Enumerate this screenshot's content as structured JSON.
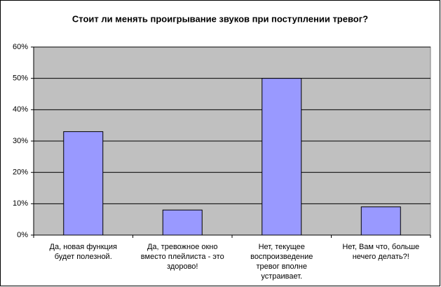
{
  "chart_data": {
    "type": "bar",
    "title": "Стоит ли менять проигрывание звуков при поступлении тревог?",
    "categories": [
      "Да, новая функция будет полезной.",
      "Да, тревожное окно вместо плейлиста - это здорово!",
      "Нет, текущее воспроизведение тревог вполне устраивает.",
      "Нет, Вам что, больше нечего делать?!"
    ],
    "values": [
      33,
      8,
      50,
      9
    ],
    "color": "#9999ff",
    "ylim": [
      0,
      60
    ],
    "yticks": [
      {
        "value": 0,
        "label": "0%"
      },
      {
        "value": 10,
        "label": "10%"
      },
      {
        "value": 20,
        "label": "20%"
      },
      {
        "value": 30,
        "label": "30%"
      },
      {
        "value": 40,
        "label": "40%"
      },
      {
        "value": 50,
        "label": "50%"
      },
      {
        "value": 60,
        "label": "60%"
      }
    ],
    "grid": true
  }
}
